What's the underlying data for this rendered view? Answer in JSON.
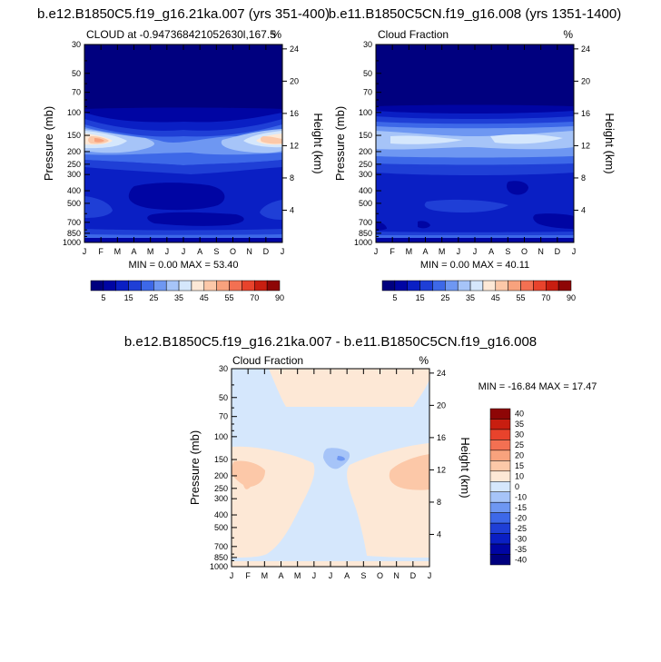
{
  "months": [
    "J",
    "F",
    "M",
    "A",
    "M",
    "J",
    "J",
    "A",
    "S",
    "O",
    "N",
    "D",
    "J"
  ],
  "pressure_ticks": [
    30,
    50,
    70,
    100,
    150,
    200,
    250,
    300,
    400,
    500,
    700,
    850,
    1000
  ],
  "height_ticks": [
    4,
    8,
    12,
    16,
    20,
    24
  ],
  "ylabel_left": "Pressure (mb)",
  "ylabel_right": "Height (km)",
  "colors": {
    "fraction_levels": [
      "#00007f",
      "#0005a3",
      "#0a1fc4",
      "#1f3fd6",
      "#3d68e8",
      "#6e97f2",
      "#a6c4f8",
      "#d5e7fc",
      "#fde8d6",
      "#fcc8a8",
      "#f8a27d",
      "#f37052",
      "#e8432c",
      "#c81e10",
      "#8e0606"
    ],
    "diff_levels": [
      "#00007f",
      "#0005a3",
      "#0a1fc4",
      "#1f3fd6",
      "#3d68e8",
      "#6e97f2",
      "#a6c4f8",
      "#d5e7fc",
      "#fde8d6",
      "#fcc8a8",
      "#f8a27d",
      "#f37052",
      "#e8432c",
      "#c81e10",
      "#8e0606"
    ]
  },
  "chart_data": [
    {
      "type": "heatmap",
      "id": "panel1",
      "title": "b.e12.B1850C5.f19_g16.21ka.007 (yrs 351-400)",
      "left_string": "CLOUD at -0.947368421052630l,167.5",
      "right_string": "%",
      "xlabel": "",
      "ylabel": "Pressure (mb)",
      "x_categories": [
        "J",
        "F",
        "M",
        "A",
        "M",
        "J",
        "J",
        "A",
        "S",
        "O",
        "N",
        "D",
        "J"
      ],
      "ylim_mb": [
        30,
        1000
      ],
      "min_label": "MIN =   0.00 MAX =  53.40",
      "min": 0.0,
      "max": 53.4,
      "colorbar": {
        "labels": [
          "5",
          "15",
          "25",
          "35",
          "45",
          "55",
          "70",
          "90"
        ]
      }
    },
    {
      "type": "heatmap",
      "id": "panel2",
      "title": "b.e11.B1850C5CN.f19_g16.008 (yrs 1351-1400)",
      "left_string": "Cloud Fraction",
      "right_string": "%",
      "xlabel": "",
      "ylabel": "Pressure (mb)",
      "x_categories": [
        "J",
        "F",
        "M",
        "A",
        "M",
        "J",
        "J",
        "A",
        "S",
        "O",
        "N",
        "D",
        "J"
      ],
      "ylim_mb": [
        30,
        1000
      ],
      "min_label": "MIN =   0.00 MAX =  40.11",
      "min": 0.0,
      "max": 40.11,
      "colorbar": {
        "labels": [
          "5",
          "15",
          "25",
          "35",
          "45",
          "55",
          "70",
          "90"
        ]
      }
    },
    {
      "type": "heatmap",
      "id": "panel3",
      "title": "b.e12.B1850C5.f19_g16.21ka.007 - b.e11.B1850C5CN.f19_g16.008",
      "left_string": "Cloud Fraction",
      "right_string": "%",
      "xlabel": "",
      "ylabel": "Pressure (mb)",
      "x_categories": [
        "J",
        "F",
        "M",
        "A",
        "M",
        "J",
        "J",
        "A",
        "S",
        "O",
        "N",
        "D",
        "J"
      ],
      "ylim_mb": [
        30,
        1000
      ],
      "min_label": "MIN = -16.84 MAX =  17.47",
      "min": -16.84,
      "max": 17.47,
      "colorbar": {
        "labels": [
          "40",
          "35",
          "30",
          "25",
          "20",
          "15",
          "10",
          "0",
          "-10",
          "-15",
          "-20",
          "-25",
          "-30",
          "-35",
          "-40"
        ]
      }
    }
  ]
}
